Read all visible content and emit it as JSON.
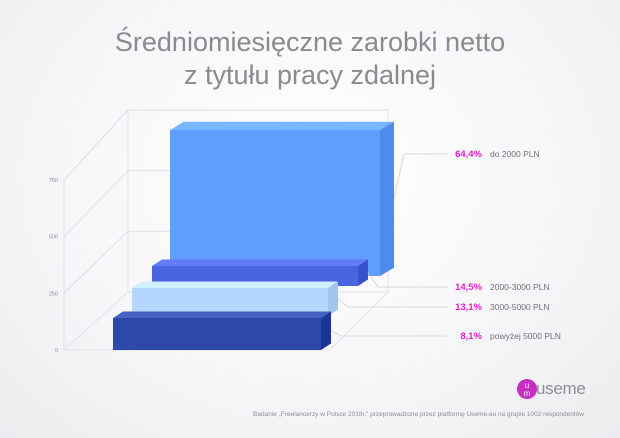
{
  "title_line1": "Średniomiesięczne zarobki netto",
  "title_line2": "z tytułu pracy zdalnej",
  "chart_data": {
    "type": "bar",
    "orientation": "horizontal-3d",
    "categories": [
      "do 2000 PLN",
      "2000-3000 PLN",
      "3000-5000 PLN",
      "powyżej 5000 PLN"
    ],
    "values": [
      64.4,
      14.5,
      13.1,
      8.1
    ],
    "value_labels": [
      "64,4%",
      "14,5%",
      "13,1%",
      "8,1%"
    ],
    "axis_ticks": [
      "0",
      "250",
      "500",
      "750"
    ],
    "value_color": "#e020c8",
    "bar_colors": [
      "#5f9dff",
      "#4a64df",
      "#b5d7ff",
      "#2c48a9"
    ]
  },
  "logo_text": "useme",
  "footer": "Badanie „Freelancerzy w Polsce 2018r.” przeprowadzone przez platformę Useme.eu na grupie 1002 respondentów"
}
